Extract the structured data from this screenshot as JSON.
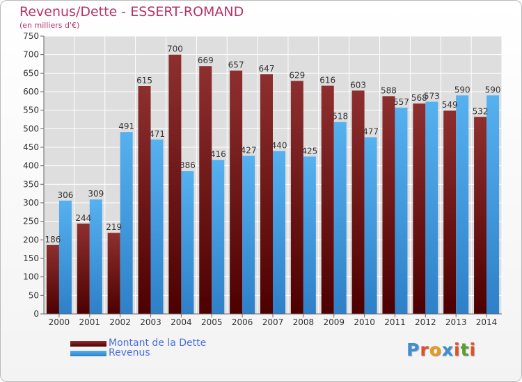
{
  "header": {
    "title": "Revenus/Dette - ESSERT-ROMAND",
    "subtitle": "(en milliers d'€)"
  },
  "legend": {
    "debt_label": "Montant de la Dette",
    "revenue_label": "Revenus"
  },
  "logo": {
    "letters": [
      "P",
      "r",
      "o",
      "x",
      "i",
      "t",
      "i"
    ],
    "colors": [
      "#3a8fd6",
      "#e0502a",
      "#e89a1e",
      "#3a8fd6",
      "#e0502a",
      "#5aa02c",
      "#e0502a"
    ]
  },
  "colors": {
    "debt": "#7a1c1c",
    "revenue": "#4aa3e6"
  },
  "chart_data": {
    "type": "bar",
    "title": "Revenus/Dette - ESSERT-ROMAND",
    "ylabel": "(en milliers d'€)",
    "xlabel": "",
    "categories": [
      "2000",
      "2001",
      "2002",
      "2003",
      "2004",
      "2005",
      "2006",
      "2007",
      "2008",
      "2009",
      "2010",
      "2011",
      "2012",
      "2013",
      "2014"
    ],
    "series": [
      {
        "name": "Montant de la Dette",
        "values": [
          186,
          244,
          219,
          615,
          700,
          669,
          657,
          647,
          629,
          616,
          603,
          588,
          568,
          549,
          532
        ]
      },
      {
        "name": "Revenus",
        "values": [
          306,
          309,
          491,
          471,
          386,
          416,
          427,
          440,
          425,
          518,
          477,
          557,
          573,
          590,
          590
        ]
      }
    ],
    "ylim": [
      0,
      750
    ],
    "yticks": [
      0,
      50,
      100,
      150,
      200,
      250,
      300,
      350,
      400,
      450,
      500,
      550,
      600,
      650,
      700,
      750
    ],
    "grid": true,
    "legend_position": "bottom-left"
  }
}
